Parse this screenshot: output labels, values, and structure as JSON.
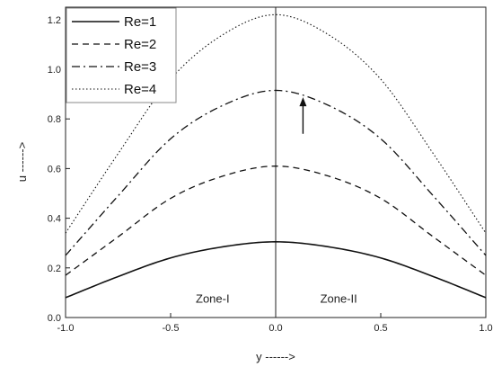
{
  "chart_data": {
    "type": "line",
    "title": "",
    "xlabel": "y ------>",
    "ylabel": "u ------>",
    "xlim": [
      -1.0,
      1.0
    ],
    "ylim": [
      0.0,
      1.25
    ],
    "xticks": [
      -1.0,
      -0.5,
      0.0,
      0.5,
      1.0
    ],
    "xtick_labels": [
      "-1.0",
      "-0.5",
      "0.0",
      "0.5",
      "1.0"
    ],
    "yticks": [
      0.0,
      0.2,
      0.4,
      0.6,
      0.8,
      1.0,
      1.2
    ],
    "ytick_labels": [
      "0.0",
      "0.2",
      "0.4",
      "0.6",
      "0.8",
      "1.0",
      "1.2"
    ],
    "grid": false,
    "legend_position": "top-left",
    "annotations": [
      {
        "text": "Zone-I",
        "x": -0.3,
        "y": 0.06
      },
      {
        "text": "Zone-II",
        "x": 0.3,
        "y": 0.06
      }
    ],
    "divider_x": 0.0,
    "arrow": {
      "x": 0.13,
      "y_from": 0.74,
      "y_to": 0.88,
      "direction": "up"
    },
    "series": [
      {
        "name": "Re=1",
        "style": "solid",
        "x": [
          -1.0,
          -0.75,
          -0.5,
          -0.25,
          0.0,
          0.25,
          0.5,
          0.75,
          1.0
        ],
        "values": [
          0.08,
          0.165,
          0.24,
          0.285,
          0.305,
          0.285,
          0.24,
          0.165,
          0.08
        ]
      },
      {
        "name": "Re=2",
        "style": "dashed",
        "x": [
          -1.0,
          -0.75,
          -0.5,
          -0.25,
          0.0,
          0.25,
          0.5,
          0.75,
          1.0
        ],
        "values": [
          0.17,
          0.325,
          0.48,
          0.57,
          0.61,
          0.57,
          0.48,
          0.325,
          0.17
        ]
      },
      {
        "name": "Re=3",
        "style": "dashdot",
        "x": [
          -1.0,
          -0.75,
          -0.5,
          -0.25,
          0.0,
          0.25,
          0.5,
          0.75,
          1.0
        ],
        "values": [
          0.25,
          0.49,
          0.72,
          0.855,
          0.915,
          0.855,
          0.72,
          0.49,
          0.25
        ]
      },
      {
        "name": "Re=4",
        "style": "dotted",
        "x": [
          -1.0,
          -0.75,
          -0.5,
          -0.25,
          0.0,
          0.25,
          0.5,
          0.75,
          1.0
        ],
        "values": [
          0.34,
          0.66,
          0.96,
          1.14,
          1.22,
          1.14,
          0.96,
          0.66,
          0.34
        ]
      }
    ]
  }
}
